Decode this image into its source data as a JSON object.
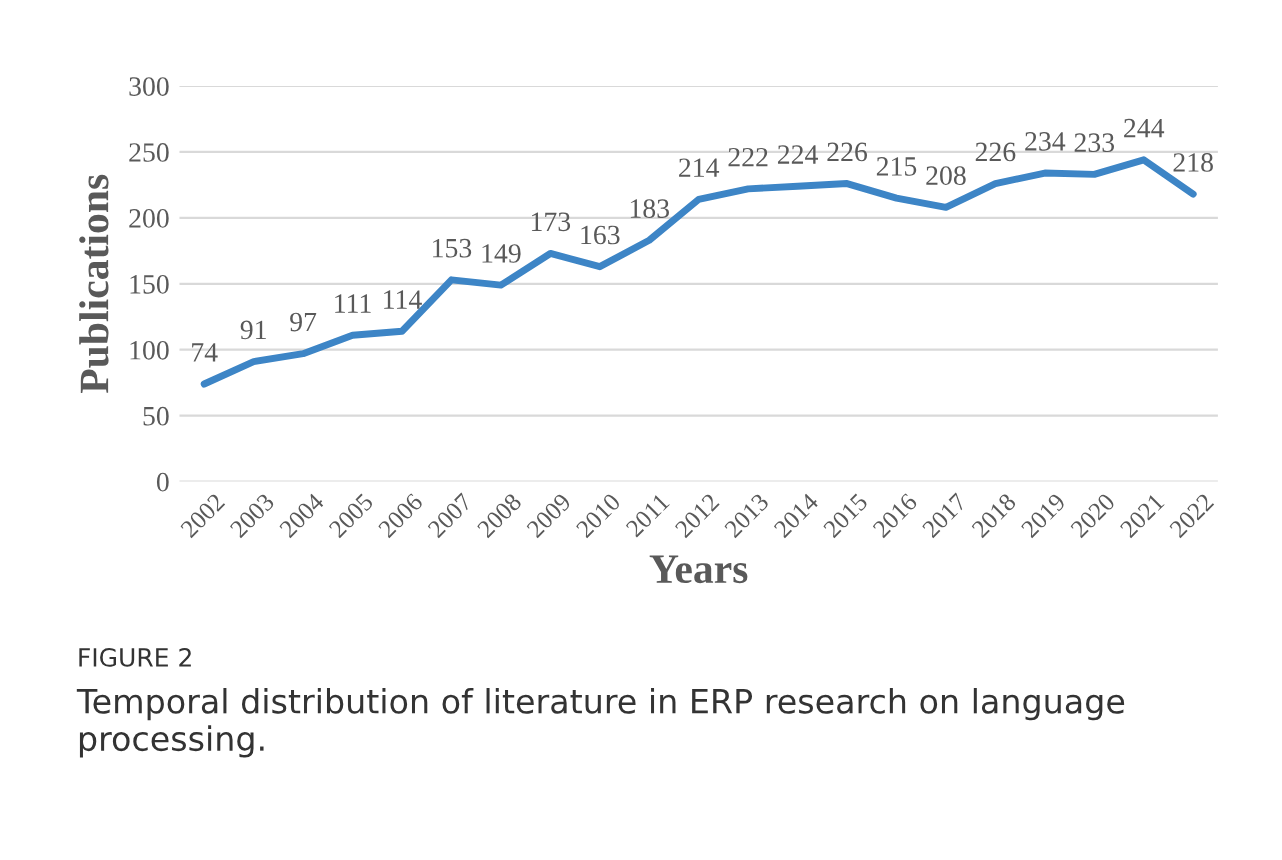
{
  "chart_data": {
    "type": "line",
    "xlabel": "Years",
    "ylabel": "Publications",
    "categories": [
      "2002",
      "2003",
      "2004",
      "2005",
      "2006",
      "2007",
      "2008",
      "2009",
      "2010",
      "2011",
      "2012",
      "2013",
      "2014",
      "2015",
      "2016",
      "2017",
      "2018",
      "2019",
      "2020",
      "2021",
      "2022"
    ],
    "series": [
      {
        "color": "#3d85c6",
        "values": [
          74,
          91,
          97,
          111,
          114,
          153,
          149,
          173,
          163,
          183,
          214,
          222,
          224,
          226,
          215,
          208,
          226,
          234,
          233,
          244,
          218
        ]
      }
    ],
    "ylim": [
      0,
      300
    ],
    "yticks": [
      0,
      50,
      100,
      150,
      200,
      250,
      300
    ],
    "grid": "y",
    "data_labels": true,
    "marker": "none",
    "line_style": "solid",
    "legend": false,
    "annotations": [
      "FIGURE 2",
      "Temporal distribution of literature in ERP research on language processing."
    ]
  }
}
